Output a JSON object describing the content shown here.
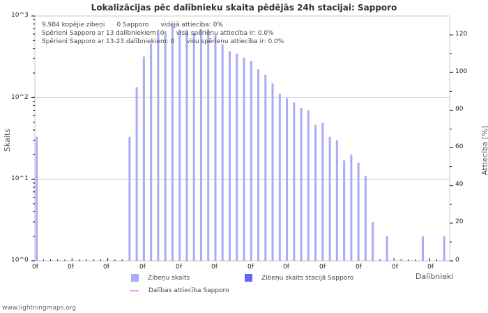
{
  "header": {
    "title": "Lokalizācijas pēc dalībnieku skaita pēdējās 24h stacijai: Sapporo"
  },
  "stats": {
    "line1": "9,984 kopējie zibeņi      0 Sapporo      vidējā attiecība: 0%",
    "line2": "Spērieni Sapporo ar 13 dalībniekiem: 0      visu spērienu attiecība ir: 0.0%",
    "line3": "Spērieni Sapporo ar 13-23 dalībniekiem: 0      visu spērienu attiecība ir: 0.0%"
  },
  "axes": {
    "y_left_label": "Skaits",
    "y_right_label": "Attiecība [%]",
    "x_label": "Dalībnieki",
    "y_left_ticks": [
      "10^3",
      "10^2",
      "10^1",
      "10^0"
    ],
    "y_right_ticks": [
      "120",
      "100",
      "80",
      "60",
      "40",
      "20",
      "0"
    ],
    "x_tick_labels": [
      "0f",
      "0f",
      "0f",
      "0f",
      "0f",
      "0f",
      "0f",
      "0f",
      "0f",
      "0f",
      "0f",
      "0f"
    ]
  },
  "legend": {
    "item1": "Zibeņu skaits",
    "item2": "Zibeņu skaits stacijā Sapporo",
    "item3": "Dalības attiecība Sapporo"
  },
  "colors": {
    "bar_total": "#aaaaf5",
    "bar_station": "#6666ff",
    "ratio_line": "#e39be6",
    "grid": "#c8c8c8"
  },
  "footer": {
    "source": "www.lightningmaps.org"
  },
  "chart_data": {
    "type": "bar",
    "title": "Lokalizācijas pēc dalībnieku skaita pēdējās 24h stacijai: Sapporo",
    "xlabel": "Dalībnieki",
    "ylabel": "Skaits",
    "ylabel_right": "Attiecība [%]",
    "yscale": "log",
    "ylim": [
      1,
      1000
    ],
    "ylim_right": [
      0,
      130
    ],
    "grid": true,
    "legend_position": "bottom",
    "categories": [
      1,
      2,
      3,
      4,
      5,
      6,
      7,
      8,
      9,
      10,
      11,
      12,
      13,
      14,
      15,
      16,
      17,
      18,
      19,
      20,
      21,
      22,
      23,
      24,
      25,
      26,
      27,
      28,
      29,
      30,
      31,
      32,
      33,
      34,
      35,
      36,
      37,
      38,
      39,
      40,
      41,
      42,
      43,
      44,
      45,
      46,
      47,
      48,
      49,
      50,
      51,
      52,
      53,
      54,
      55,
      56,
      57,
      58
    ],
    "series": [
      {
        "name": "Zibeņu skaits",
        "values": [
          33,
          0,
          0,
          0,
          0,
          0,
          0,
          0,
          0,
          0,
          0,
          0,
          0,
          33,
          134,
          318,
          461,
          680,
          654,
          770,
          680,
          680,
          620,
          690,
          690,
          580,
          450,
          370,
          345,
          310,
          280,
          224,
          190,
          150,
          112,
          98,
          87,
          75,
          70,
          46,
          49,
          33,
          30,
          17,
          20,
          16,
          11,
          3,
          1,
          2,
          1,
          1,
          0,
          0,
          2,
          0,
          0,
          2
        ]
      },
      {
        "name": "Zibeņu skaits stacijā Sapporo",
        "values": [
          0,
          0,
          0,
          0,
          0,
          0,
          0,
          0,
          0,
          0,
          0,
          0,
          0,
          0,
          0,
          0,
          0,
          0,
          0,
          0,
          0,
          0,
          0,
          0,
          0,
          0,
          0,
          0,
          0,
          0,
          0,
          0,
          0,
          0,
          0,
          0,
          0,
          0,
          0,
          0,
          0,
          0,
          0,
          0,
          0,
          0,
          0,
          0,
          0,
          0,
          0,
          0,
          0,
          0,
          0,
          0,
          0,
          0
        ]
      },
      {
        "name": "Dalības attiecība Sapporo",
        "axis": "right",
        "values": [
          0,
          0,
          0,
          0,
          0,
          0,
          0,
          0,
          0,
          0,
          0,
          0,
          0,
          0,
          0,
          0,
          0,
          0,
          0,
          0,
          0,
          0,
          0,
          0,
          0,
          0,
          0,
          0,
          0,
          0,
          0,
          0,
          0,
          0,
          0,
          0,
          0,
          0,
          0,
          0,
          0,
          0,
          0,
          0,
          0,
          0,
          0,
          0,
          0,
          0,
          0,
          0,
          0,
          0,
          0,
          0,
          0,
          0
        ]
      }
    ]
  }
}
